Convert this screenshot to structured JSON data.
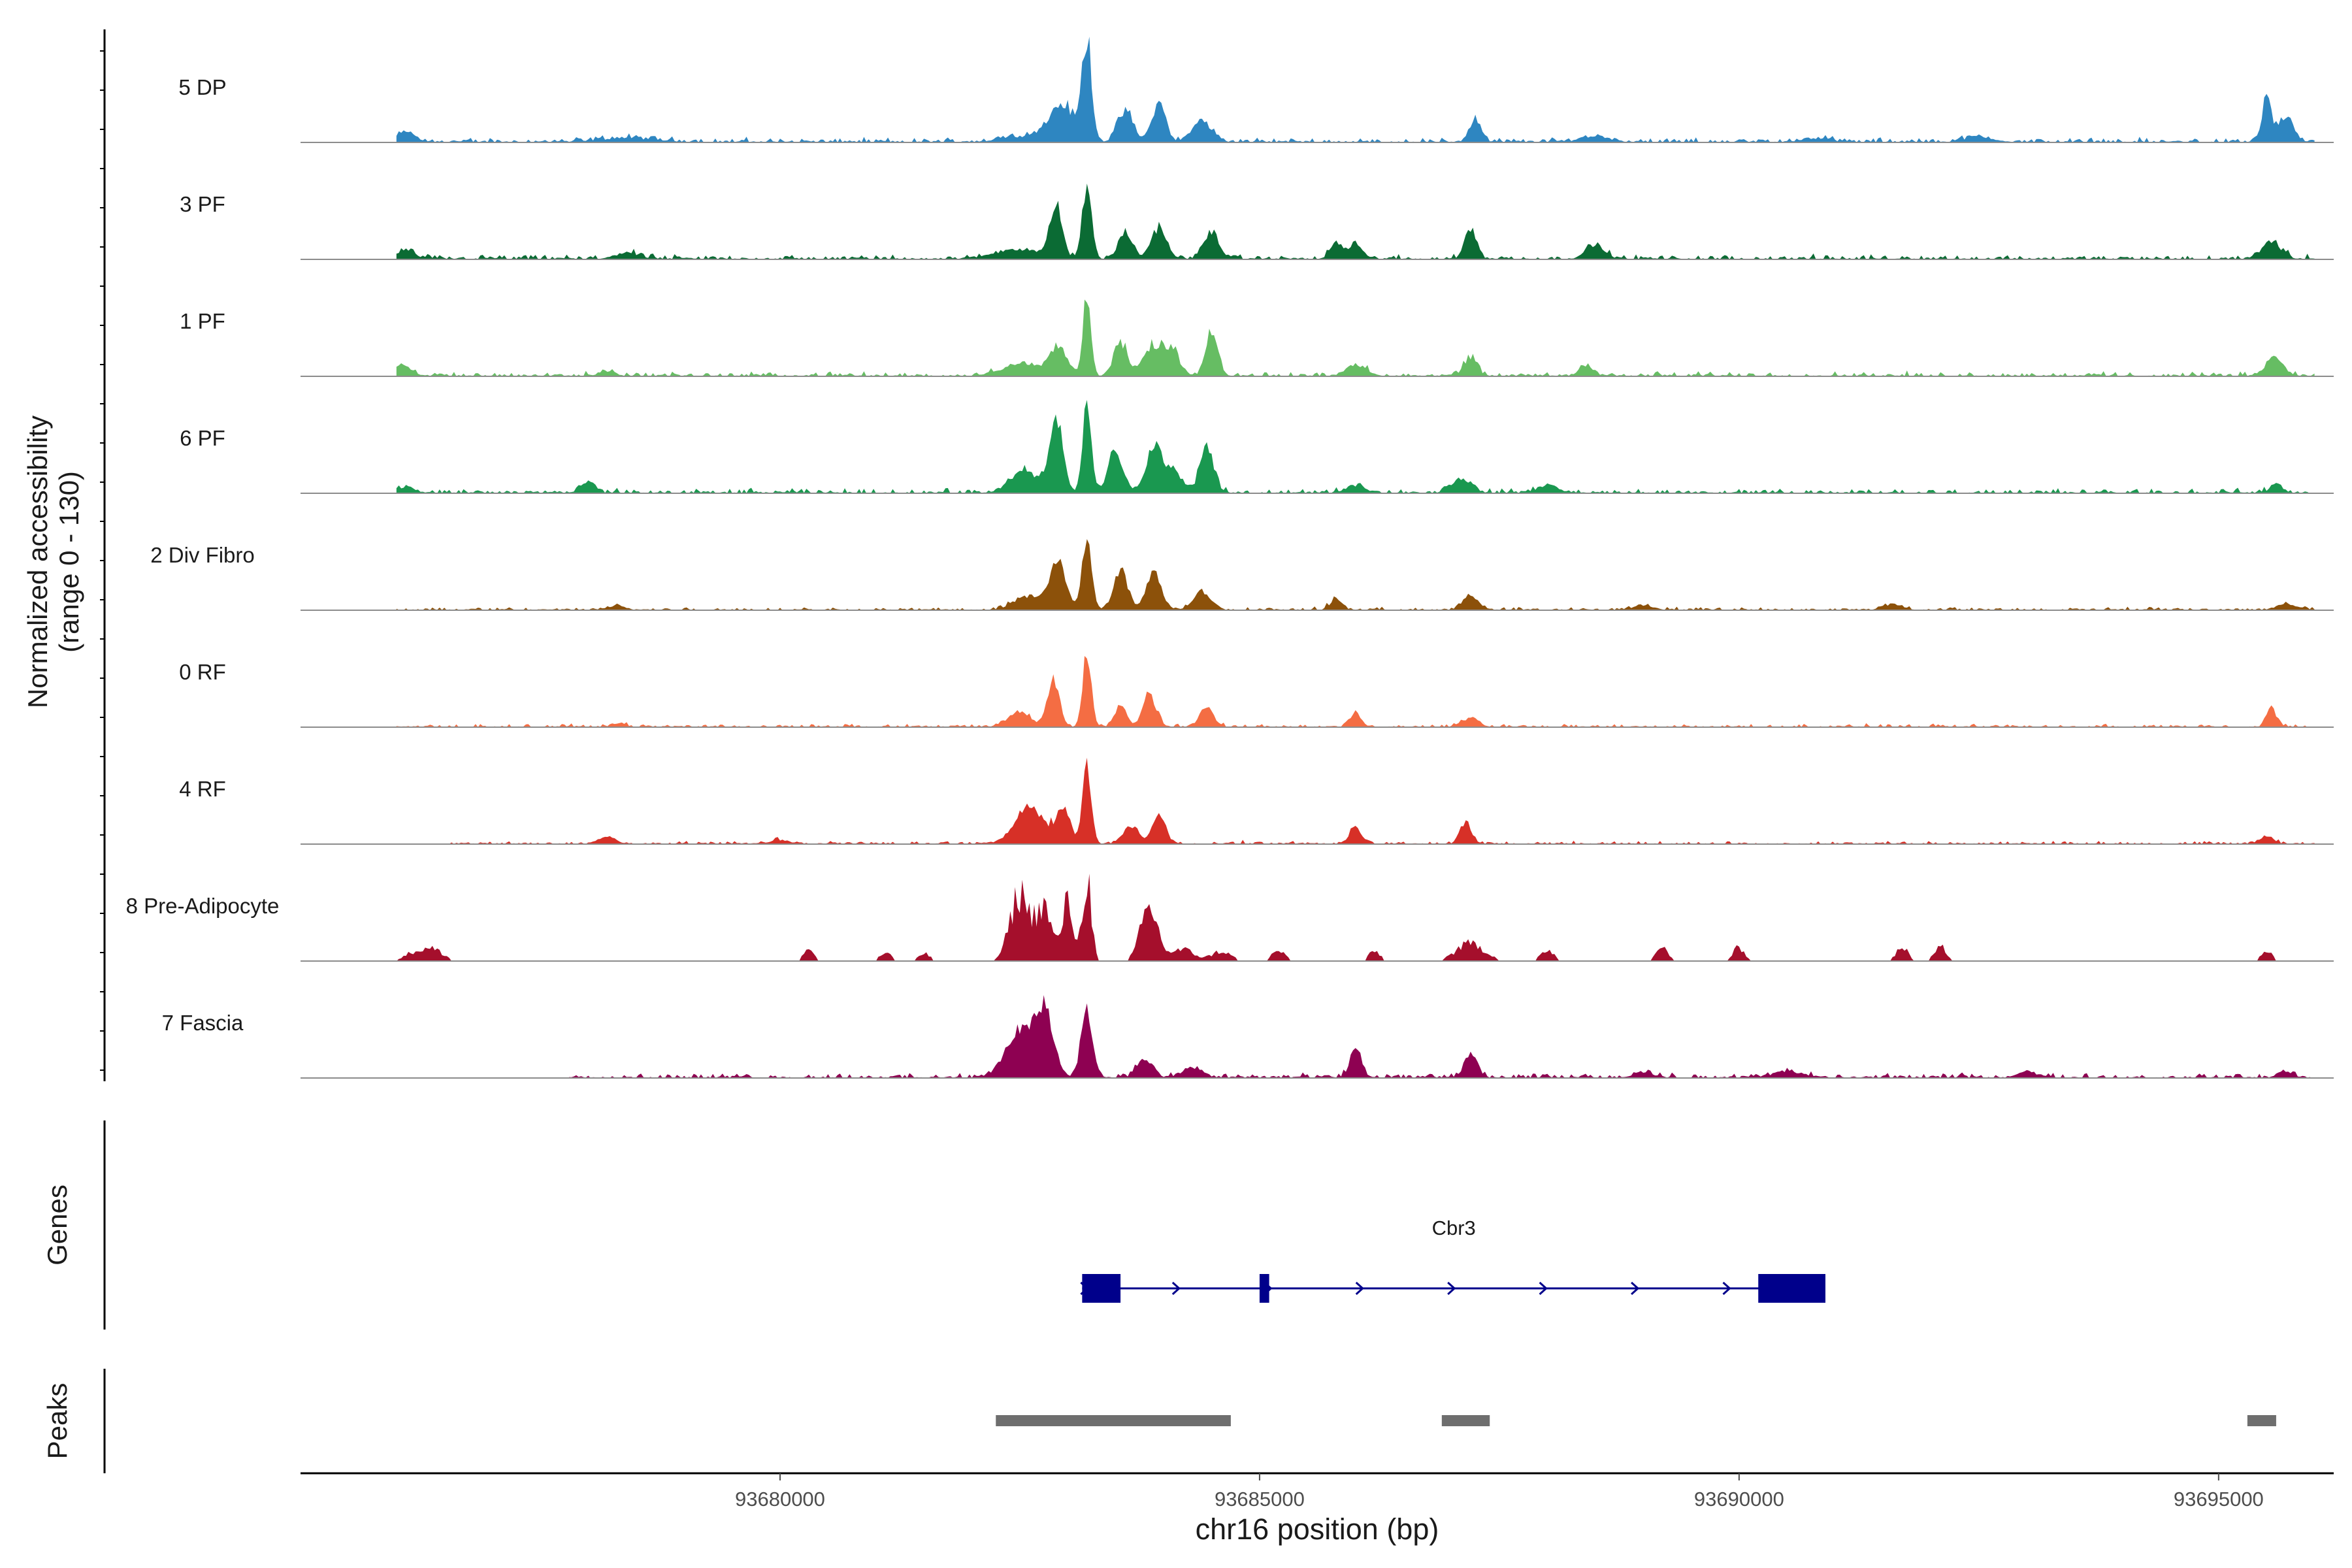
{
  "chart_data": {
    "type": "area",
    "title": "",
    "region": "chr16",
    "xlabel": "chr16 position (bp)",
    "ylabel": "Normalized accessibility",
    "ylabel_range": "(range 0 - 130)",
    "ylim": [
      0,
      130
    ],
    "xlim": [
      93675000,
      93696200
    ],
    "x_ticks": [
      93680000,
      93685000,
      93690000,
      93695000
    ],
    "x_tick_labels": [
      "93680000",
      "93685000",
      "93690000",
      "93695000"
    ],
    "series": [
      {
        "name": "5 DP",
        "color": "#2e86c1",
        "data_start": 93676000,
        "data_end": 93696000,
        "noise": 3,
        "sparse": false,
        "peaks": [
          [
            93676100,
            90,
            10
          ],
          [
            93678400,
            300,
            4
          ],
          [
            93682400,
            150,
            5
          ],
          [
            93682700,
            120,
            8
          ],
          [
            93683200,
            50,
            105
          ],
          [
            93682950,
            120,
            38
          ],
          [
            93683600,
            80,
            32
          ],
          [
            93683950,
            70,
            40
          ],
          [
            93684400,
            100,
            22
          ],
          [
            93687250,
            60,
            25
          ],
          [
            93688500,
            150,
            6
          ],
          [
            93690800,
            150,
            4
          ],
          [
            93692500,
            150,
            5
          ],
          [
            93695500,
            50,
            45
          ],
          [
            93695700,
            80,
            25
          ]
        ]
      },
      {
        "name": "3 PF",
        "color": "#0b6b34",
        "data_start": 93676000,
        "data_end": 93696000,
        "noise": 3,
        "sparse": false,
        "peaks": [
          [
            93676100,
            90,
            9
          ],
          [
            93678400,
            120,
            6
          ],
          [
            93682500,
            250,
            10
          ],
          [
            93682880,
            60,
            55
          ],
          [
            93683200,
            50,
            70
          ],
          [
            93683600,
            70,
            28
          ],
          [
            93683950,
            80,
            32
          ],
          [
            93684500,
            80,
            28
          ],
          [
            93685800,
            60,
            18
          ],
          [
            93686000,
            60,
            17
          ],
          [
            93687200,
            60,
            32
          ],
          [
            93688500,
            100,
            14
          ],
          [
            93695550,
            100,
            18
          ]
        ]
      },
      {
        "name": "1 PF",
        "color": "#66bd63",
        "data_start": 93676000,
        "data_end": 93696000,
        "noise": 3,
        "sparse": false,
        "peaks": [
          [
            93676050,
            90,
            12
          ],
          [
            93678200,
            80,
            5
          ],
          [
            93682500,
            200,
            12
          ],
          [
            93682900,
            90,
            30
          ],
          [
            93683200,
            40,
            90
          ],
          [
            93683550,
            70,
            34
          ],
          [
            93683900,
            100,
            32
          ],
          [
            93684100,
            70,
            25
          ],
          [
            93684500,
            60,
            45
          ],
          [
            93686000,
            100,
            12
          ],
          [
            93687200,
            70,
            18
          ],
          [
            93688400,
            70,
            12
          ],
          [
            93695580,
            90,
            20
          ]
        ]
      },
      {
        "name": "6 PF",
        "color": "#1a9850",
        "data_start": 93676000,
        "data_end": 93696000,
        "noise": 3,
        "sparse": false,
        "peaks": [
          [
            93676100,
            90,
            6
          ],
          [
            93678000,
            60,
            12
          ],
          [
            93682550,
            150,
            22
          ],
          [
            93682880,
            70,
            75
          ],
          [
            93683200,
            45,
            90
          ],
          [
            93683500,
            80,
            42
          ],
          [
            93683900,
            80,
            45
          ],
          [
            93684100,
            100,
            22
          ],
          [
            93684450,
            70,
            48
          ],
          [
            93686000,
            100,
            8
          ],
          [
            93687100,
            100,
            15
          ],
          [
            93688000,
            100,
            8
          ],
          [
            93695600,
            60,
            10
          ]
        ]
      },
      {
        "name": "2 Div Fibro",
        "color": "#8c510a",
        "data_start": 93676000,
        "data_end": 93696000,
        "noise": 2,
        "sparse": false,
        "peaks": [
          [
            93678300,
            80,
            5
          ],
          [
            93682600,
            150,
            15
          ],
          [
            93682900,
            80,
            50
          ],
          [
            93683200,
            50,
            72
          ],
          [
            93683550,
            70,
            42
          ],
          [
            93683900,
            80,
            38
          ],
          [
            93684400,
            90,
            20
          ],
          [
            93685800,
            60,
            12
          ],
          [
            93687200,
            80,
            15
          ],
          [
            93689000,
            100,
            5
          ],
          [
            93691600,
            100,
            6
          ],
          [
            93695700,
            100,
            6
          ]
        ]
      },
      {
        "name": "0 RF",
        "color": "#f46d43",
        "data_start": 93676000,
        "data_end": 93696000,
        "noise": 2,
        "sparse": false,
        "peaks": [
          [
            93678300,
            60,
            4
          ],
          [
            93682500,
            120,
            15
          ],
          [
            93682850,
            60,
            50
          ],
          [
            93683200,
            45,
            75
          ],
          [
            93683550,
            60,
            22
          ],
          [
            93683850,
            70,
            35
          ],
          [
            93684450,
            70,
            22
          ],
          [
            93686000,
            60,
            14
          ],
          [
            93687200,
            80,
            10
          ],
          [
            93695550,
            50,
            20
          ]
        ]
      },
      {
        "name": "4 RF",
        "color": "#d73027",
        "data_start": 93676500,
        "data_end": 93696000,
        "noise": 2,
        "sparse": false,
        "peaks": [
          [
            93678200,
            80,
            7
          ],
          [
            93680000,
            100,
            4
          ],
          [
            93682600,
            150,
            40
          ],
          [
            93682950,
            70,
            38
          ],
          [
            93683200,
            45,
            80
          ],
          [
            93683650,
            80,
            18
          ],
          [
            93683950,
            70,
            30
          ],
          [
            93686000,
            60,
            18
          ],
          [
            93687150,
            60,
            22
          ],
          [
            93695500,
            70,
            8
          ]
        ]
      },
      {
        "name": "8 Pre-Adipocyte",
        "color": "#a50f2c",
        "data_start": 93676000,
        "data_end": 93696000,
        "noise": 0,
        "sparse": true,
        "peaks": [
          [
            93676200,
            120,
            9
          ],
          [
            93676400,
            100,
            10
          ],
          [
            93680300,
            60,
            12
          ],
          [
            93681100,
            60,
            8
          ],
          [
            93681500,
            60,
            8
          ],
          [
            93682500,
            100,
            70
          ],
          [
            93682750,
            80,
            55
          ],
          [
            93683000,
            60,
            60
          ],
          [
            93683200,
            45,
            90
          ],
          [
            93683850,
            90,
            55
          ],
          [
            93684200,
            120,
            12
          ],
          [
            93684600,
            100,
            10
          ],
          [
            93685200,
            80,
            10
          ],
          [
            93686200,
            60,
            10
          ],
          [
            93687200,
            150,
            18
          ],
          [
            93688000,
            80,
            10
          ],
          [
            93689200,
            60,
            14
          ],
          [
            93690000,
            60,
            14
          ],
          [
            93691700,
            60,
            15
          ],
          [
            93692100,
            60,
            15
          ],
          [
            93695500,
            60,
            12
          ]
        ]
      },
      {
        "name": "7 Fascia",
        "color": "#8e0152",
        "data_start": 93677800,
        "data_end": 93696000,
        "noise": 3,
        "sparse": false,
        "peaks": [
          [
            93682500,
            150,
            45
          ],
          [
            93682750,
            100,
            65
          ],
          [
            93683200,
            60,
            68
          ],
          [
            93683800,
            80,
            20
          ],
          [
            93684300,
            100,
            10
          ],
          [
            93686000,
            60,
            30
          ],
          [
            93687200,
            70,
            22
          ],
          [
            93689000,
            100,
            6
          ],
          [
            93690500,
            150,
            6
          ],
          [
            93693000,
            100,
            6
          ],
          [
            93695700,
            80,
            5
          ]
        ]
      }
    ],
    "genes": [
      {
        "name": "Cbr3",
        "strand": "+",
        "start": 93683150,
        "end": 93690900,
        "exons": [
          [
            93683150,
            93683550
          ],
          [
            93685000,
            93685100
          ],
          [
            93690200,
            93690900
          ]
        ]
      }
    ],
    "peaks_track": [
      [
        93682250,
        93684700
      ],
      [
        93686900,
        93687400
      ],
      [
        93695300,
        93695600
      ]
    ],
    "genes_track_label": "Genes",
    "peaks_track_label": "Peaks"
  }
}
